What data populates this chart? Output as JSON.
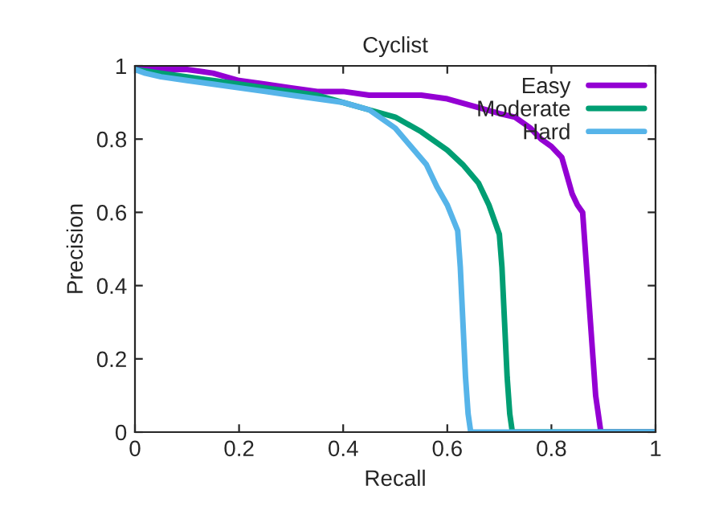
{
  "chart_data": {
    "type": "line",
    "title": "Cyclist",
    "xlabel": "Recall",
    "ylabel": "Precision",
    "xlim": [
      0,
      1
    ],
    "ylim": [
      0,
      1
    ],
    "xticks": [
      0,
      0.2,
      0.4,
      0.6,
      0.8,
      1
    ],
    "yticks": [
      0,
      0.2,
      0.4,
      0.6,
      0.8,
      1
    ],
    "grid": false,
    "legend": "top right",
    "marker": "none",
    "line_style": "solid",
    "series": [
      {
        "name": "Easy",
        "color": "#9400d3",
        "x": [
          0,
          0.02,
          0.05,
          0.1,
          0.15,
          0.2,
          0.25,
          0.3,
          0.35,
          0.4,
          0.45,
          0.5,
          0.55,
          0.6,
          0.65,
          0.7,
          0.73,
          0.76,
          0.78,
          0.8,
          0.82,
          0.83,
          0.84,
          0.85,
          0.86,
          0.865,
          0.87,
          0.875,
          0.88,
          0.885,
          0.89,
          0.895,
          0.9,
          1
        ],
        "values": [
          1,
          1,
          0.99,
          0.99,
          0.98,
          0.96,
          0.95,
          0.94,
          0.93,
          0.93,
          0.92,
          0.92,
          0.92,
          0.91,
          0.89,
          0.87,
          0.86,
          0.83,
          0.8,
          0.78,
          0.75,
          0.7,
          0.65,
          0.62,
          0.6,
          0.5,
          0.4,
          0.3,
          0.2,
          0.1,
          0.05,
          0.0,
          0,
          0
        ]
      },
      {
        "name": "Moderate",
        "color": "#009e73",
        "x": [
          0,
          0.05,
          0.1,
          0.15,
          0.2,
          0.25,
          0.3,
          0.35,
          0.4,
          0.45,
          0.5,
          0.55,
          0.6,
          0.63,
          0.66,
          0.68,
          0.7,
          0.705,
          0.71,
          0.715,
          0.72,
          0.725,
          1
        ],
        "values": [
          0.99,
          0.98,
          0.97,
          0.96,
          0.95,
          0.94,
          0.93,
          0.92,
          0.9,
          0.88,
          0.86,
          0.82,
          0.77,
          0.73,
          0.68,
          0.62,
          0.54,
          0.45,
          0.3,
          0.15,
          0.05,
          0,
          0
        ]
      },
      {
        "name": "Hard",
        "color": "#56b4e9",
        "x": [
          0,
          0.02,
          0.05,
          0.1,
          0.15,
          0.2,
          0.25,
          0.3,
          0.35,
          0.4,
          0.45,
          0.5,
          0.53,
          0.56,
          0.58,
          0.6,
          0.62,
          0.625,
          0.63,
          0.635,
          0.64,
          0.645,
          1
        ],
        "values": [
          0.99,
          0.98,
          0.97,
          0.96,
          0.95,
          0.94,
          0.93,
          0.92,
          0.91,
          0.9,
          0.88,
          0.83,
          0.78,
          0.73,
          0.67,
          0.62,
          0.55,
          0.45,
          0.3,
          0.15,
          0.05,
          0,
          0
        ]
      }
    ]
  }
}
